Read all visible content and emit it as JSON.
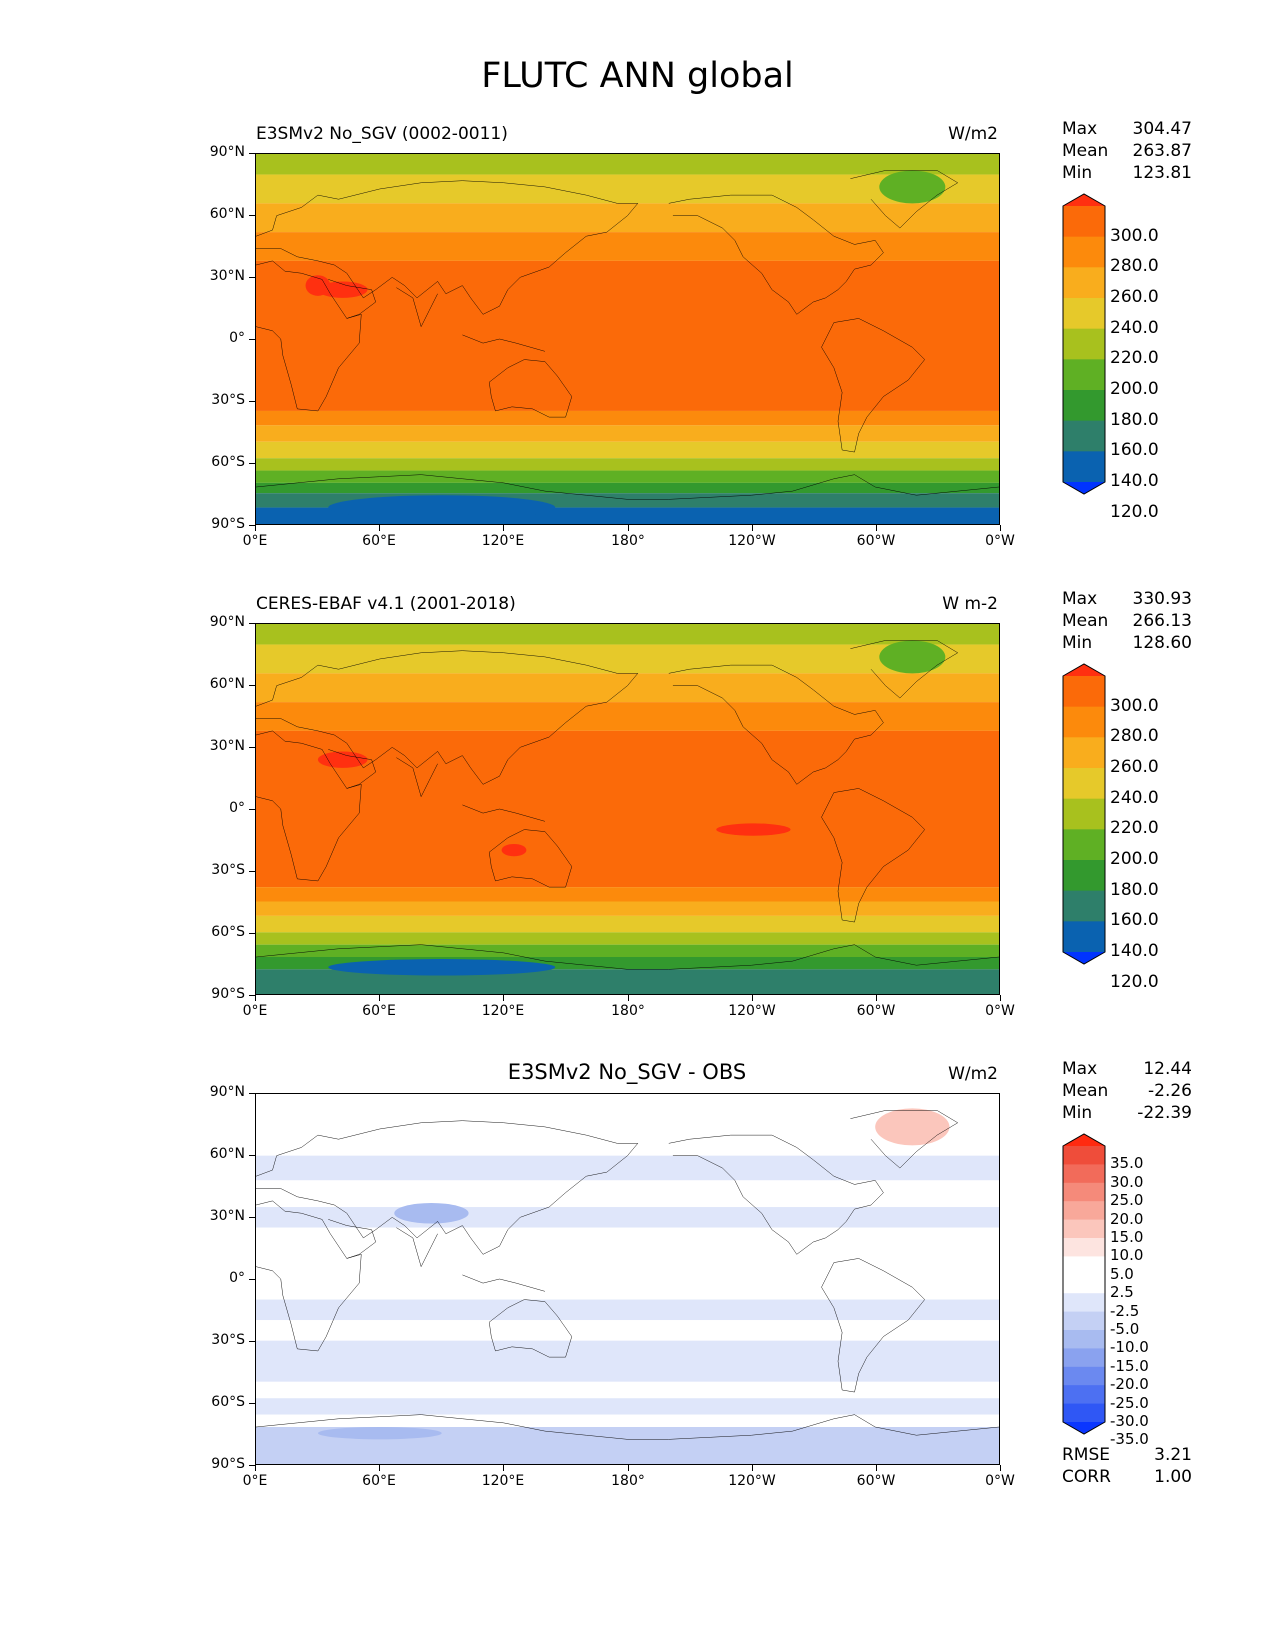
{
  "figure": {
    "title": "FLUTC ANN global"
  },
  "axes": {
    "lat_labels": [
      "90°N",
      "60°N",
      "30°N",
      "0°",
      "30°S",
      "60°S",
      "90°S"
    ],
    "lon_labels": [
      "0°E",
      "60°E",
      "120°E",
      "180°",
      "120°W",
      "60°W",
      "0°W"
    ]
  },
  "panels": [
    {
      "title_left": "E3SMv2 No_SGV (0002-0011)",
      "units": "W/m2",
      "stats": {
        "max_label": "Max",
        "max": "304.47",
        "mean_label": "Mean",
        "mean": "263.87",
        "min_label": "Min",
        "min": "123.81"
      },
      "colorbar": {
        "colors": [
          "#0033ff",
          "#0a62b0",
          "#2e7f6a",
          "#33992e",
          "#5fb024",
          "#a8c11e",
          "#e6c92a",
          "#f9ad1d",
          "#fc8a0c",
          "#fb6a09",
          "#ff3010"
        ],
        "levels": [
          "300.0",
          "280.0",
          "260.0",
          "240.0",
          "220.0",
          "200.0",
          "180.0",
          "160.0",
          "140.0",
          "120.0"
        ]
      }
    },
    {
      "title_left": "CERES-EBAF v4.1 (2001-2018)",
      "units": "W m-2",
      "stats": {
        "max_label": "Max",
        "max": "330.93",
        "mean_label": "Mean",
        "mean": "266.13",
        "min_label": "Min",
        "min": "128.60"
      },
      "colorbar": {
        "colors": [
          "#0033ff",
          "#0a62b0",
          "#2e7f6a",
          "#33992e",
          "#5fb024",
          "#a8c11e",
          "#e6c92a",
          "#f9ad1d",
          "#fc8a0c",
          "#fb6a09",
          "#ff3010"
        ],
        "levels": [
          "300.0",
          "280.0",
          "260.0",
          "240.0",
          "220.0",
          "200.0",
          "180.0",
          "160.0",
          "140.0",
          "120.0"
        ]
      }
    },
    {
      "title_center": "E3SMv2 No_SGV - OBS",
      "units": "W/m2",
      "stats": {
        "max_label": "Max",
        "max": "12.44",
        "mean_label": "Mean",
        "mean": "-2.26",
        "min_label": "Min",
        "min": "-22.39"
      },
      "metrics": {
        "rmse_label": "RMSE",
        "rmse": "3.21",
        "corr_label": "CORR",
        "corr": "1.00"
      },
      "colorbar": {
        "colors": [
          "#0a36ff",
          "#2f57f5",
          "#4d70f2",
          "#6b89f0",
          "#8aa2ef",
          "#a8bbf0",
          "#c4d0f4",
          "#dfe6fa",
          "#ffffff",
          "#ffffff",
          "#fde4e0",
          "#fbc6bc",
          "#f8a89a",
          "#f58a7a",
          "#f26b5a",
          "#ef4d3a",
          "#ff2a10"
        ],
        "levels": [
          "35.0",
          "30.0",
          "25.0",
          "20.0",
          "15.0",
          "10.0",
          "5.0",
          "2.5",
          "-2.5",
          "-5.0",
          "-10.0",
          "-15.0",
          "-20.0",
          "-25.0",
          "-30.0",
          "-35.0"
        ]
      }
    }
  ]
}
